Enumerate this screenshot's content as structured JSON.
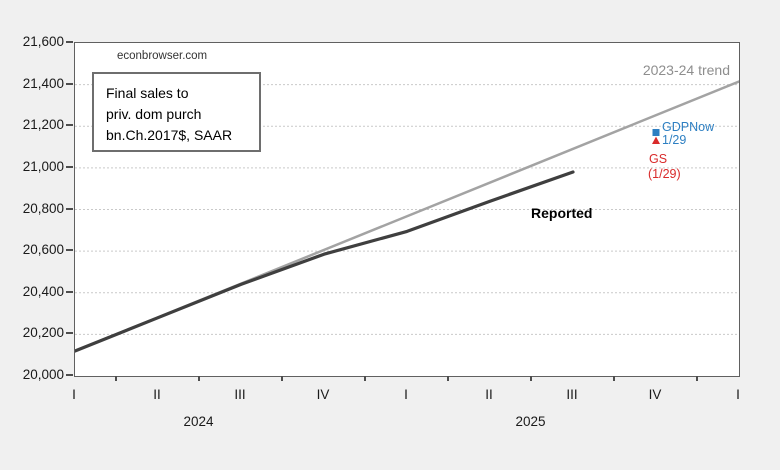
{
  "watermark": "econbrowser.com",
  "info_box": {
    "line1": "Final sales to",
    "line2": "priv. dom purch",
    "line3": "bn.Ch.2017$, SAAR"
  },
  "labels": {
    "trend": "2023-24 trend",
    "reported": "Reported",
    "gdpnow_line1": "GDPNow",
    "gdpnow_line2": "1/29",
    "gs_line1": "GS",
    "gs_line2": "(1/29)"
  },
  "colors": {
    "background": "#f0f0f0",
    "plot_background": "#ffffff",
    "axis": "#606060",
    "gridline": "#c9c9c9",
    "reported_line": "#3f3f3f",
    "trend_line": "#a3a3a3",
    "gdpnow_blue": "#2d7fc2",
    "gs_red": "#d92b2b"
  },
  "chart_data": {
    "type": "line",
    "title": "Final sales to priv. dom purch bn.Ch.2017$, SAAR",
    "source_watermark": "econbrowser.com",
    "x_axis": {
      "quarter_labels": [
        "I",
        "II",
        "III",
        "IV",
        "I",
        "II",
        "III",
        "IV",
        "I"
      ],
      "year_labels": [
        {
          "text": "2024",
          "center_quarter_index": 1.5
        },
        {
          "text": "2025",
          "center_quarter_index": 5.5
        }
      ],
      "minor_ticks_at_half_intervals": true
    },
    "y_axis": {
      "ylim": [
        20000,
        21600
      ],
      "ticks": [
        20000,
        20200,
        20400,
        20600,
        20800,
        21000,
        21200,
        21400,
        21600
      ],
      "grid": "horizontal-dotted"
    },
    "series": [
      {
        "name": "2023-24 trend",
        "color": "#a3a3a3",
        "width": 2.5,
        "x": [
          0,
          8
        ],
        "values": [
          20120,
          21415
        ]
      },
      {
        "name": "Reported",
        "color": "#3f3f3f",
        "width": 3.2,
        "x": [
          0,
          1,
          2,
          3,
          4,
          5,
          6
        ],
        "values": [
          20120,
          20280,
          20440,
          20585,
          20695,
          20840,
          20980
        ]
      }
    ],
    "point_series": [
      {
        "name": "GDPNow 1/29",
        "marker": "square",
        "color": "#2d7fc2",
        "x": 7,
        "value": 21170
      },
      {
        "name": "GS (1/29)",
        "marker": "triangle",
        "color": "#d92b2b",
        "x": 7,
        "value": 21130
      }
    ]
  },
  "annotation_colors": {
    "gdpnow_text": "#2d7fc2",
    "gs_text": "#d92b2b"
  }
}
